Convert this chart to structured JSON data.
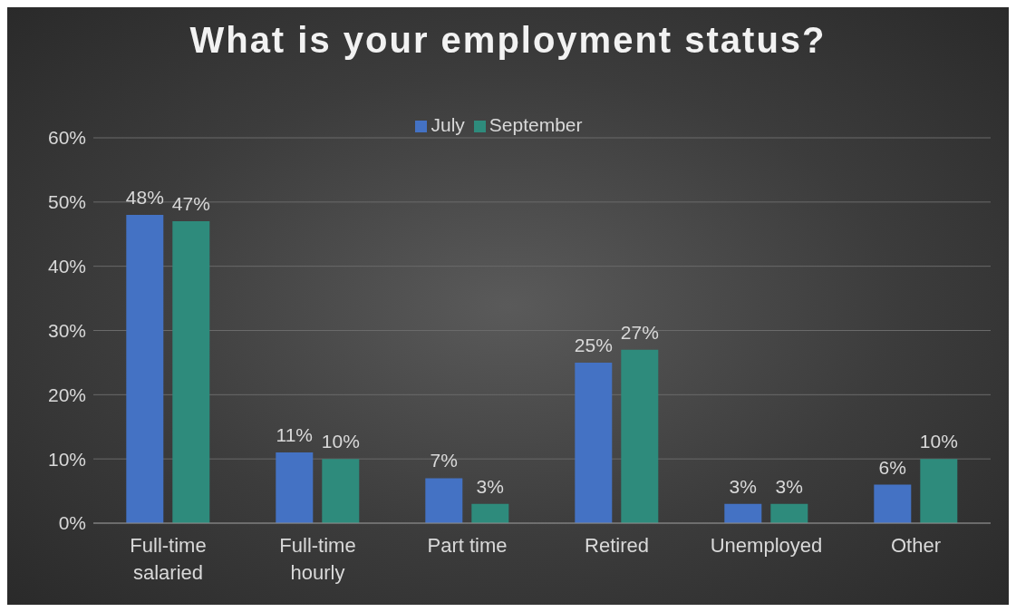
{
  "chart_data": {
    "type": "bar",
    "title": "What is your employment status?",
    "categories": [
      "Full-time\nsalaried",
      "Full-time\nhourly",
      "Part time",
      "Retired",
      "Unemployed",
      "Other"
    ],
    "series": [
      {
        "name": "July",
        "color": "#4472c4",
        "values": [
          48,
          11,
          7,
          25,
          3,
          6
        ],
        "value_labels": [
          "48%",
          "11%",
          "7%",
          "25%",
          "3%",
          "6%"
        ]
      },
      {
        "name": "September",
        "color": "#2e8b7c",
        "values": [
          47,
          10,
          3,
          27,
          3,
          10
        ],
        "value_labels": [
          "47%",
          "10%",
          "3%",
          "27%",
          "3%",
          "10%"
        ]
      }
    ],
    "ylim": [
      0,
      60
    ],
    "yticks": [
      {
        "value": 0,
        "label": "0%"
      },
      {
        "value": 10,
        "label": "10%"
      },
      {
        "value": 20,
        "label": "20%"
      },
      {
        "value": 30,
        "label": "30%"
      },
      {
        "value": 40,
        "label": "40%"
      },
      {
        "value": 50,
        "label": "50%"
      },
      {
        "value": 60,
        "label": "60%"
      }
    ],
    "grid": "y",
    "legend": "top"
  }
}
